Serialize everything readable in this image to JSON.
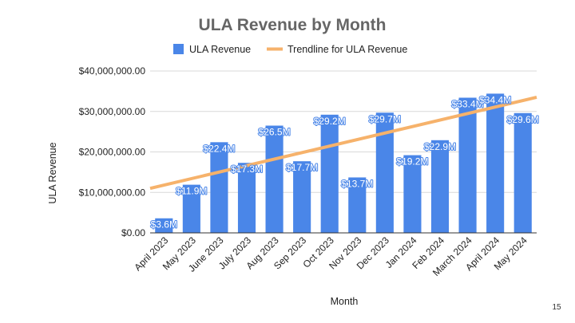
{
  "page_number": "15",
  "colors": {
    "bar": "#4a86e8",
    "trendline": "#f6b26b",
    "grid": "#d9d9d9",
    "axis": "#333333"
  },
  "chart_data": {
    "type": "bar",
    "title": "ULA Revenue by Month",
    "xlabel": "Month",
    "ylabel": "ULA Revenue",
    "ylim": [
      0,
      40000000
    ],
    "yticks": [
      0,
      10000000,
      20000000,
      30000000,
      40000000
    ],
    "ytick_labels": [
      "$0.00",
      "$10,000,000.00",
      "$20,000,000.00",
      "$30,000,000.00",
      "$40,000,000.00"
    ],
    "grid": true,
    "legend": {
      "placement": "top",
      "entries": [
        "ULA Revenue",
        "Trendline for ULA Revenue"
      ]
    },
    "categories": [
      "April 2023",
      "May 2023",
      "June 2023",
      "July 2023",
      "Aug 2023",
      "Sep 2023",
      "Oct 2023",
      "Nov 2023",
      "Dec 2023",
      "Jan 2024",
      "Feb 2024",
      "March 2024",
      "April 2024",
      "May 2024"
    ],
    "series": [
      {
        "name": "ULA Revenue",
        "values": [
          3600000,
          11900000,
          22400000,
          17300000,
          26500000,
          17700000,
          29200000,
          13700000,
          29700000,
          19200000,
          22900000,
          33400000,
          34400000,
          29600000
        ],
        "data_labels": [
          "$3.6M",
          "$11.9M",
          "$22.4M",
          "$17.3M",
          "$26.5M",
          "$17.7M",
          "$29.2M",
          "$13.7M",
          "$29.7M",
          "$19.2M",
          "$22.9M",
          "$33.4M",
          "$34.4M",
          "$29.6M"
        ]
      }
    ],
    "trendline": {
      "name": "Trendline for ULA Revenue",
      "start": 11000000,
      "end": 33500000
    }
  }
}
